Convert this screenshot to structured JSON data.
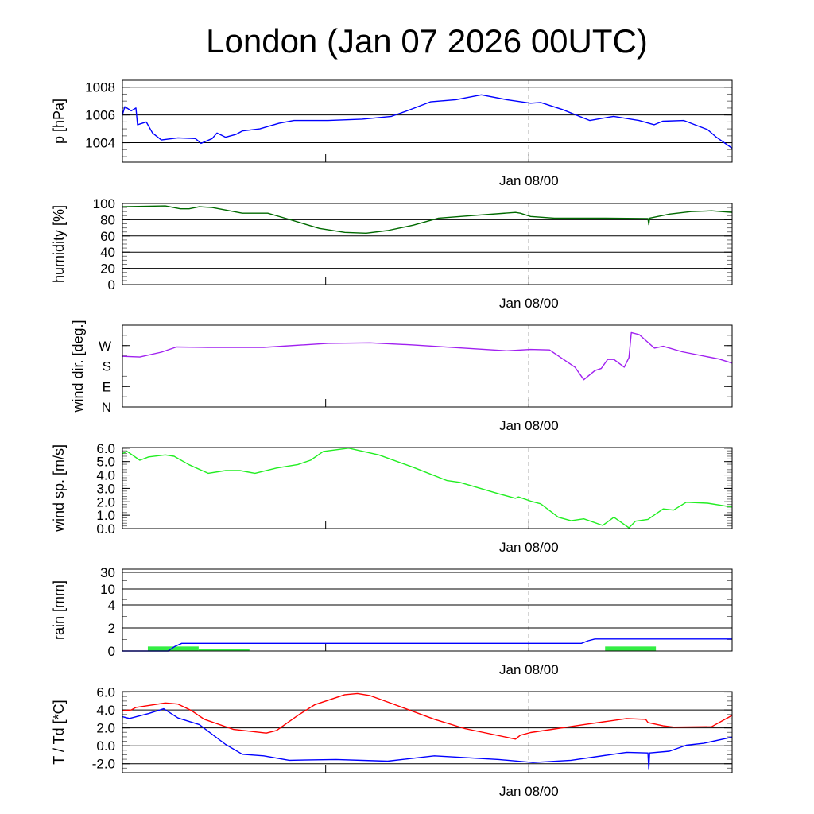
{
  "title": "London (Jan 07 2026 00UTC)",
  "x_tick_label": "Jan 08/00",
  "colors": {
    "pressure": "#0000ff",
    "humidity": "#006a00",
    "wind_dir": "#a020f0",
    "wind_speed": "#22ee22",
    "rain_total": "#0000ff",
    "rain_bars": "#33ee44",
    "temperature": "#ff0000",
    "dewpoint": "#0000ff"
  },
  "chart_data": [
    {
      "type": "line",
      "id": "pressure",
      "ylabel": "p [hPa]",
      "xlabel": "Jan 08/00",
      "xunit": "hours since Jan 07 00UTC",
      "xlim": [
        0,
        36
      ],
      "ylim": [
        1002.6,
        1008.5
      ],
      "grid": [
        1004,
        1006,
        1008
      ],
      "yticks": [
        {
          "v": 1008,
          "label": "1008"
        },
        {
          "v": 1006,
          "label": "1006"
        },
        {
          "v": 1004,
          "label": "1004"
        }
      ],
      "series": [
        {
          "name": "pressure",
          "color": "#0000ff",
          "points": [
            [
              0,
              1006.0
            ],
            [
              0.14,
              1006.6
            ],
            [
              0.52,
              1006.3
            ],
            [
              0.8,
              1006.5
            ],
            [
              0.89,
              1005.3
            ],
            [
              1.41,
              1005.5
            ],
            [
              1.78,
              1004.7
            ],
            [
              2.3,
              1004.2
            ],
            [
              3.28,
              1004.35
            ],
            [
              4.31,
              1004.3
            ],
            [
              4.64,
              1003.95
            ],
            [
              5.3,
              1004.3
            ],
            [
              5.58,
              1004.7
            ],
            [
              6.09,
              1004.4
            ],
            [
              6.7,
              1004.6
            ],
            [
              7.08,
              1004.85
            ],
            [
              8.11,
              1005.0
            ],
            [
              9.24,
              1005.4
            ],
            [
              10.13,
              1005.6
            ],
            [
              12.14,
              1005.6
            ],
            [
              14.16,
              1005.7
            ],
            [
              15.89,
              1005.9
            ],
            [
              16.92,
              1006.35
            ],
            [
              18.19,
              1006.95
            ],
            [
              19.69,
              1007.1
            ],
            [
              21.19,
              1007.45
            ],
            [
              22.69,
              1007.1
            ],
            [
              24.1,
              1006.85
            ],
            [
              24.7,
              1006.9
            ],
            [
              25.97,
              1006.4
            ],
            [
              27.6,
              1005.6
            ],
            [
              29.0,
              1005.9
            ],
            [
              30.5,
              1005.6
            ],
            [
              31.4,
              1005.3
            ],
            [
              31.9,
              1005.55
            ],
            [
              33.15,
              1005.6
            ],
            [
              34.55,
              1004.95
            ],
            [
              35.07,
              1004.4
            ],
            [
              36,
              1003.6
            ]
          ]
        }
      ]
    },
    {
      "type": "line",
      "id": "humidity",
      "ylabel": "humidity [%]",
      "xlabel": "Jan 08/00",
      "xlim": [
        0,
        36
      ],
      "ylim": [
        0,
        100
      ],
      "grid": [
        20,
        40,
        60,
        80,
        100
      ],
      "yticks": [
        {
          "v": 100,
          "label": "100"
        },
        {
          "v": 80,
          "label": "80"
        },
        {
          "v": 60,
          "label": "60"
        },
        {
          "v": 40,
          "label": "40"
        },
        {
          "v": 20,
          "label": "20"
        },
        {
          "v": 0,
          "label": "0"
        }
      ],
      "series": [
        {
          "name": "humidity",
          "color": "#006a00",
          "points": [
            [
              0,
              96
            ],
            [
              2.53,
              97
            ],
            [
              3.42,
              93.4
            ],
            [
              3.94,
              93.4
            ],
            [
              4.55,
              96
            ],
            [
              5.3,
              95
            ],
            [
              7.08,
              88
            ],
            [
              8.58,
              88
            ],
            [
              9.85,
              80.4
            ],
            [
              11.63,
              69.3
            ],
            [
              13.13,
              64.4
            ],
            [
              14.39,
              63.4
            ],
            [
              15.66,
              66.7
            ],
            [
              17.16,
              73.2
            ],
            [
              18.66,
              82
            ],
            [
              20.96,
              85.6
            ],
            [
              23.21,
              89
            ],
            [
              23.49,
              88
            ],
            [
              24.1,
              84
            ],
            [
              25.5,
              82
            ],
            [
              28.5,
              82
            ],
            [
              31.03,
              81.4
            ],
            [
              31.08,
              73.8
            ],
            [
              31.13,
              82
            ],
            [
              32.3,
              87
            ],
            [
              33.57,
              90
            ],
            [
              34.79,
              91
            ],
            [
              36,
              89
            ]
          ]
        }
      ]
    },
    {
      "type": "line",
      "id": "wind_dir",
      "ylabel": "wind dir. [deg.]",
      "xlabel": "Jan 08/00",
      "xlim": [
        0,
        36
      ],
      "ylim": [
        0,
        360
      ],
      "grid": [],
      "yticks": [
        {
          "v": 270,
          "label": "W"
        },
        {
          "v": 180,
          "label": "S"
        },
        {
          "v": 90,
          "label": "E"
        },
        {
          "v": 0,
          "label": "N"
        }
      ],
      "series": [
        {
          "name": "wind direction",
          "color": "#a020f0",
          "points": [
            [
              0,
              223
            ],
            [
              1.03,
              220
            ],
            [
              2.3,
              241
            ],
            [
              3.19,
              264
            ],
            [
              5.06,
              262
            ],
            [
              8.34,
              262
            ],
            [
              12.14,
              280
            ],
            [
              14.63,
              282
            ],
            [
              17.16,
              273
            ],
            [
              19.69,
              261
            ],
            [
              22.69,
              247
            ],
            [
              24.1,
              253
            ],
            [
              25.22,
              251
            ],
            [
              26.72,
              175
            ],
            [
              27.24,
              120
            ],
            [
              27.9,
              160
            ],
            [
              28.27,
              169
            ],
            [
              28.65,
              209
            ],
            [
              29.02,
              209
            ],
            [
              29.63,
              175
            ],
            [
              29.91,
              217
            ],
            [
              30.05,
              327
            ],
            [
              30.52,
              318
            ],
            [
              31.41,
              259
            ],
            [
              31.93,
              267
            ],
            [
              33.05,
              243
            ],
            [
              35.21,
              211
            ],
            [
              36,
              193
            ]
          ]
        }
      ]
    },
    {
      "type": "line",
      "id": "wind_speed",
      "ylabel": "wind sp. [m/s]",
      "xlabel": "Jan 08/00",
      "xlim": [
        0,
        36
      ],
      "ylim": [
        0,
        6.05
      ],
      "grid": [],
      "yticks": [
        {
          "v": 6,
          "label": "6.0"
        },
        {
          "v": 5,
          "label": "5.0"
        },
        {
          "v": 4,
          "label": "4.0"
        },
        {
          "v": 3,
          "label": "3.0"
        },
        {
          "v": 2,
          "label": "2.0"
        },
        {
          "v": 1,
          "label": "1.0"
        },
        {
          "v": 0,
          "label": "0.0"
        }
      ],
      "series": [
        {
          "name": "wind speed",
          "color": "#22ee22",
          "points": [
            [
              0,
              5.6
            ],
            [
              0.28,
              5.76
            ],
            [
              1.03,
              5.1
            ],
            [
              1.55,
              5.35
            ],
            [
              2.53,
              5.5
            ],
            [
              3.05,
              5.4
            ],
            [
              3.94,
              4.76
            ],
            [
              5.06,
              4.13
            ],
            [
              6.09,
              4.33
            ],
            [
              6.94,
              4.33
            ],
            [
              7.83,
              4.13
            ],
            [
              9.1,
              4.52
            ],
            [
              10.36,
              4.78
            ],
            [
              11.11,
              5.1
            ],
            [
              11.86,
              5.76
            ],
            [
              13.36,
              6.0
            ],
            [
              15.14,
              5.5
            ],
            [
              17.16,
              4.58
            ],
            [
              19.17,
              3.58
            ],
            [
              19.92,
              3.45
            ],
            [
              22.22,
              2.6
            ],
            [
              23.21,
              2.26
            ],
            [
              23.39,
              2.36
            ],
            [
              24.1,
              2.05
            ],
            [
              24.7,
              1.85
            ],
            [
              25.74,
              0.85
            ],
            [
              26.49,
              0.59
            ],
            [
              27.24,
              0.73
            ],
            [
              28.36,
              0.24
            ],
            [
              29.02,
              0.85
            ],
            [
              29.91,
              0.06
            ],
            [
              30.29,
              0.55
            ],
            [
              31.03,
              0.69
            ],
            [
              31.93,
              1.47
            ],
            [
              32.54,
              1.38
            ],
            [
              33.29,
              1.97
            ],
            [
              34.55,
              1.9
            ],
            [
              36,
              1.61
            ]
          ]
        }
      ]
    },
    {
      "type": "bar+line",
      "id": "rain",
      "ylabel": "rain [mm]",
      "xlabel": "Jan 08/00",
      "xlim": [
        0,
        36
      ],
      "ylim": [
        0,
        35
      ],
      "grid": [
        2,
        4,
        10,
        30
      ],
      "yticks": [
        {
          "v": 30,
          "label": "30"
        },
        {
          "v": 10,
          "label": "10"
        },
        {
          "v": 4,
          "label": "4"
        },
        {
          "v": 2,
          "label": "2"
        },
        {
          "v": 0,
          "label": "0"
        }
      ],
      "bars": [
        {
          "start": 1.5,
          "end": 4.5,
          "value": 0.39
        },
        {
          "start": 4.5,
          "end": 7.5,
          "value": 0.2
        },
        {
          "start": 28.5,
          "end": 31.5,
          "value": 0.39
        }
      ],
      "series": [
        {
          "name": "accumulated rain",
          "color": "#0000ff",
          "points": [
            [
              0,
              0
            ],
            [
              2.7,
              0
            ],
            [
              3.1,
              0.4
            ],
            [
              3.5,
              0.67
            ],
            [
              27.1,
              0.67
            ],
            [
              27.5,
              0.9
            ],
            [
              27.9,
              1.05
            ],
            [
              36,
              1.05
            ]
          ]
        }
      ]
    },
    {
      "type": "line",
      "id": "temperature",
      "ylabel": "T / Td [*C]",
      "xlabel": "Jan 08/00",
      "xlim": [
        0,
        36
      ],
      "ylim": [
        -3,
        6.05
      ],
      "grid": [
        -2,
        0,
        2,
        4
      ],
      "yticks": [
        {
          "v": 6,
          "label": "6.0"
        },
        {
          "v": 4,
          "label": "4.0"
        },
        {
          "v": 2,
          "label": "2.0"
        },
        {
          "v": 0,
          "label": "0.0"
        },
        {
          "v": -2,
          "label": "-2.0"
        }
      ],
      "series": [
        {
          "name": "T",
          "color": "#ff0000",
          "points": [
            [
              0,
              3.93
            ],
            [
              0.52,
              4.0
            ],
            [
              0.8,
              4.28
            ],
            [
              2.53,
              4.78
            ],
            [
              3.28,
              4.66
            ],
            [
              4.08,
              3.93
            ],
            [
              4.83,
              2.96
            ],
            [
              6.56,
              1.83
            ],
            [
              8.49,
              1.42
            ],
            [
              9.1,
              1.71
            ],
            [
              10.36,
              3.4
            ],
            [
              11.35,
              4.58
            ],
            [
              13.13,
              5.7
            ],
            [
              13.88,
              5.84
            ],
            [
              14.63,
              5.6
            ],
            [
              15.89,
              4.73
            ],
            [
              18.42,
              2.96
            ],
            [
              20.21,
              1.92
            ],
            [
              23.21,
              0.74
            ],
            [
              23.49,
              1.18
            ],
            [
              24.1,
              1.48
            ],
            [
              27.24,
              2.36
            ],
            [
              29.77,
              3.04
            ],
            [
              30.9,
              2.95
            ],
            [
              31.03,
              2.6
            ],
            [
              31.93,
              2.23
            ],
            [
              32.54,
              2.08
            ],
            [
              34.79,
              2.13
            ],
            [
              36,
              3.4
            ]
          ]
        },
        {
          "name": "Td",
          "color": "#0000ff",
          "points": [
            [
              0,
              3.25
            ],
            [
              0.42,
              3.05
            ],
            [
              1.55,
              3.6
            ],
            [
              2.44,
              4.13
            ],
            [
              3.28,
              3.1
            ],
            [
              4.55,
              2.36
            ],
            [
              6.09,
              0.15
            ],
            [
              7.08,
              -0.94
            ],
            [
              8.34,
              -1.12
            ],
            [
              9.85,
              -1.62
            ],
            [
              12.61,
              -1.53
            ],
            [
              15.66,
              -1.71
            ],
            [
              18.42,
              -1.12
            ],
            [
              22.22,
              -1.53
            ],
            [
              24.24,
              -1.86
            ],
            [
              26.49,
              -1.62
            ],
            [
              29.77,
              -0.73
            ],
            [
              31.03,
              -0.8
            ],
            [
              31.08,
              -2.65
            ],
            [
              31.13,
              -0.8
            ],
            [
              32.3,
              -0.6
            ],
            [
              33.29,
              0.06
            ],
            [
              34.32,
              0.27
            ],
            [
              36,
              0.97
            ]
          ]
        }
      ]
    }
  ]
}
